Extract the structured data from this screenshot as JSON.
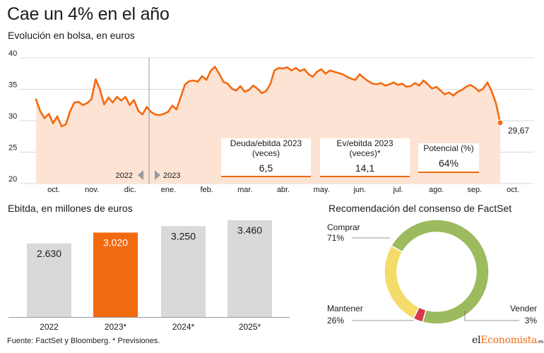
{
  "header": {
    "title": "Cae un 4% en el año",
    "line_subtitle": "Evolución en bolsa, en euros",
    "ebitda_title": "Ebitda, en millones de euros",
    "consensus_title": "Recomendación del consenso de FactSet",
    "source": "Fuente: FactSet y Bloomberg. * Previsiones.",
    "brand": {
      "prefix": "el",
      "accent": "Economista",
      "suffix": ".es"
    }
  },
  "colors": {
    "line": "#f26a10",
    "area": "#fde3d4",
    "bar_default": "#d9d9d9",
    "bar_highlight": "#f26a10",
    "donut_comprar": "#9cba5e",
    "donut_mantener": "#f3dc6a",
    "donut_vender": "#d8394b"
  },
  "ratios": [
    {
      "label_lines": [
        "Deuda/ebitda 2023",
        "(veces)"
      ],
      "value": "6,5"
    },
    {
      "label_lines": [
        "Ev/ebitda 2023",
        "(veces)*"
      ],
      "value": "14,1"
    },
    {
      "label_lines": [
        "Potencial (%)"
      ],
      "value": "64%"
    }
  ],
  "chart_data": [
    {
      "type": "area",
      "x_labels": [
        "oct.",
        "nov.",
        "dic.",
        "ene.",
        "feb.",
        "mar.",
        "abr.",
        "may.",
        "jun.",
        "jul.",
        "ago.",
        "sep.",
        "oct."
      ],
      "y_ticks": [
        20,
        25,
        30,
        35,
        40
      ],
      "ylim": [
        20,
        40
      ],
      "grid": "horizontal",
      "year_labels": [
        "2022",
        "2023"
      ],
      "last_value_label": "29,67",
      "series": [
        {
          "values": [
            33.4,
            31.5,
            30.4,
            31.1,
            29.6,
            30.7,
            29.1,
            29.4,
            31.5,
            32.9,
            33.0,
            32.5,
            32.8,
            33.4,
            36.6,
            35.0,
            32.6,
            33.7,
            32.9,
            33.8,
            33.2,
            33.8,
            32.5,
            33.3,
            31.6,
            31.0,
            32.2,
            31.4,
            31.0,
            30.9,
            31.1,
            31.4,
            32.4,
            31.8,
            33.8,
            35.8,
            36.3,
            36.4,
            36.2,
            37.1,
            36.5,
            37.9,
            38.6,
            37.5,
            36.2,
            35.9,
            35.1,
            34.8,
            35.5,
            34.6,
            34.9,
            35.6,
            35.1,
            34.4,
            34.7,
            35.8,
            38.0,
            38.4,
            38.3,
            38.5,
            38.0,
            38.4,
            37.9,
            38.2,
            37.4,
            37.0,
            37.8,
            38.2,
            37.5,
            38.0,
            37.8,
            37.6,
            37.4,
            37.0,
            36.7,
            36.5,
            37.4,
            36.8,
            36.3,
            35.9,
            35.8,
            36.0,
            35.6,
            35.8,
            36.1,
            35.7,
            35.9,
            35.4,
            35.5,
            36.0,
            35.6,
            36.4,
            35.8,
            35.1,
            35.4,
            34.8,
            34.2,
            34.5,
            34.0,
            34.6,
            34.9,
            35.4,
            35.7,
            35.3,
            34.7,
            35.1,
            36.1,
            34.7,
            32.8,
            29.67
          ]
        }
      ]
    },
    {
      "type": "bar",
      "categories": [
        "2022",
        "2023*",
        "2024*",
        "2025*"
      ],
      "values": [
        2630,
        3020,
        3250,
        3460
      ],
      "value_labels": [
        "2.630",
        "3.020",
        "3.250",
        "3.460"
      ],
      "highlight_index": 1
    },
    {
      "type": "pie",
      "donut": true,
      "slices": [
        {
          "name": "Comprar",
          "value": 71,
          "label": "71%"
        },
        {
          "name": "Vender",
          "value": 3,
          "label": "3%"
        },
        {
          "name": "Mantener",
          "value": 26,
          "label": "26%"
        }
      ]
    }
  ]
}
